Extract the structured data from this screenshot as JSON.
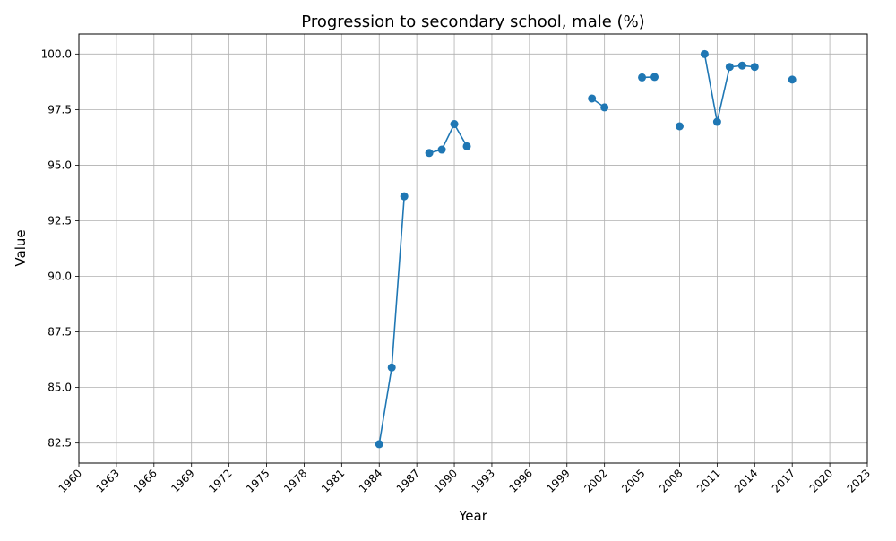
{
  "chart_data": {
    "type": "line",
    "title": "Progression to secondary school, male (%)",
    "xlabel": "Year",
    "ylabel": "Value",
    "xlim": [
      1960,
      2023
    ],
    "ylim": [
      81.6,
      100.9
    ],
    "x_ticks": [
      1960,
      1963,
      1966,
      1969,
      1972,
      1975,
      1978,
      1981,
      1984,
      1987,
      1990,
      1993,
      1996,
      1999,
      2002,
      2005,
      2008,
      2011,
      2014,
      2017,
      2020,
      2023
    ],
    "y_ticks": [
      82.5,
      85.0,
      87.5,
      90.0,
      92.5,
      95.0,
      97.5,
      100.0
    ],
    "y_tick_labels": [
      "82.5",
      "85.0",
      "87.5",
      "90.0",
      "92.5",
      "95.0",
      "97.5",
      "100.0"
    ],
    "grid": true,
    "series": [
      {
        "color": "#1f77b4",
        "points": [
          [
            1984,
            82.45
          ],
          [
            1985,
            85.9
          ],
          [
            1986,
            93.6
          ],
          [
            1987,
            null
          ],
          [
            1988,
            95.55
          ],
          [
            1989,
            95.7
          ],
          [
            1990,
            96.85
          ],
          [
            1991,
            95.85
          ],
          [
            1992,
            null
          ],
          [
            2001,
            98.0
          ],
          [
            2002,
            97.6
          ],
          [
            2003,
            null
          ],
          [
            2005,
            98.95
          ],
          [
            2006,
            98.97
          ],
          [
            2007,
            null
          ],
          [
            2008,
            96.75
          ],
          [
            2009,
            null
          ],
          [
            2010,
            100.0
          ],
          [
            2011,
            96.95
          ],
          [
            2012,
            99.42
          ],
          [
            2013,
            99.48
          ],
          [
            2014,
            99.42
          ],
          [
            2015,
            null
          ],
          [
            2017,
            98.85
          ]
        ]
      }
    ]
  }
}
